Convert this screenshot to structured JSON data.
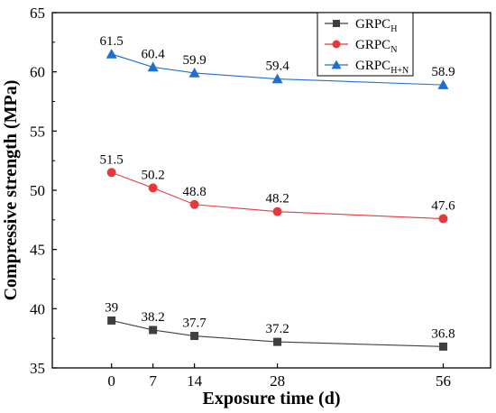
{
  "chart_data": {
    "type": "line",
    "title": "",
    "xlabel": "Exposure time (d)",
    "ylabel": "Compressive strength (MPa)",
    "x": [
      0,
      7,
      14,
      28,
      56
    ],
    "x_tick_labels": [
      "0",
      "7",
      "14",
      "28",
      "56"
    ],
    "y_ticks": [
      "35",
      "40",
      "45",
      "50",
      "55",
      "60",
      "65"
    ],
    "ylim": [
      35,
      65
    ],
    "grid": false,
    "legend_position": "top-right",
    "series": [
      {
        "name_main": "GRPC",
        "name_sub": "H",
        "color": "#3f3f3f",
        "marker": "square",
        "values": [
          39,
          38.2,
          37.7,
          37.2,
          36.8
        ],
        "labels": [
          "39",
          "38.2",
          "37.7",
          "37.2",
          "36.8"
        ]
      },
      {
        "name_main": "GRPC",
        "name_sub": "N",
        "color": "#e8383b",
        "marker": "circle",
        "values": [
          51.5,
          50.2,
          48.8,
          48.2,
          47.6
        ],
        "labels": [
          "51.5",
          "50.2",
          "48.8",
          "48.2",
          "47.6"
        ]
      },
      {
        "name_main": "GRPC",
        "name_sub": "H+N",
        "color": "#1f6fd1",
        "marker": "triangle",
        "values": [
          61.5,
          60.4,
          59.9,
          59.4,
          58.9
        ],
        "labels": [
          "61.5",
          "60.4",
          "59.9",
          "59.4",
          "58.9"
        ]
      }
    ]
  }
}
